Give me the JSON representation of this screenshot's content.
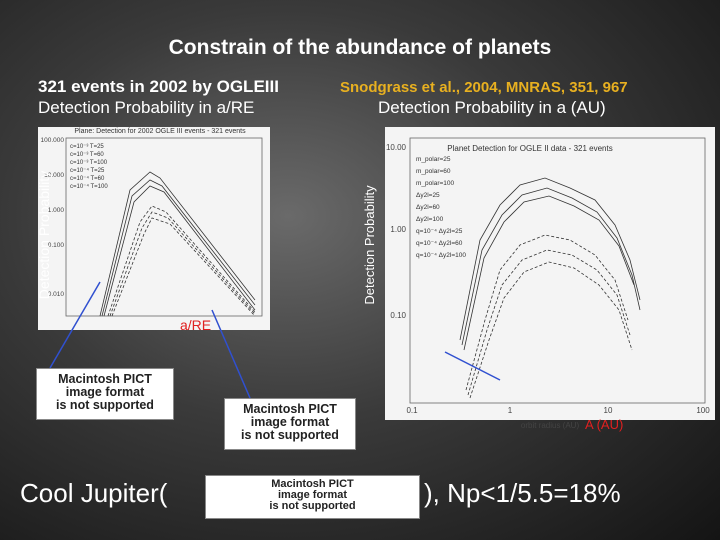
{
  "title": "Constrain of the abundance of planets",
  "left": {
    "heading": [
      "321 events in 2002 by OGLEIII",
      "Detection Probability in a/RE"
    ],
    "plot_title": "Plane: Detection for 2002 OGLE III events - 321 events",
    "legend": [
      "c=10⁻³ T=25",
      "c=10⁻³ T=60",
      "c=10⁻³ T=100",
      "c=10⁻⁴ T=25",
      "c=10⁻⁴ T=60",
      "c=10⁻⁴ T=100"
    ],
    "yticks": [
      "100.000",
      "10.000",
      "1.000",
      "0.100",
      "0.010"
    ],
    "ylabel": "Detection Probability",
    "xlabel": "a/RE"
  },
  "right": {
    "citation": "Snodgrass et al.,  2004, MNRAS, 351, 967",
    "heading": "Detection Probability in a (AU)",
    "plot_title": "Planet Detection for OGLE II data - 321 events",
    "legend": [
      "m_polar=25",
      "m_polar=60",
      "m_polar=100",
      "Δy2l=25",
      "Δy2l=60",
      "Δy2l=100",
      "q=10⁻⁴ Δy2l=25",
      "q=10⁻⁴ Δy2l=60",
      "q=10⁻⁴ Δy2l=100"
    ],
    "yticks": [
      "10.00",
      "1.00",
      "0.10"
    ],
    "xticks": [
      "0.1",
      "1",
      "10",
      "100"
    ],
    "xlabel": "orbit radius (AU)",
    "ylabel": "Detection Probability",
    "axis_note": "A  (AU)"
  },
  "pict": [
    "Macintosh PICT",
    "image format",
    "is not supported"
  ],
  "bottom": [
    "Cool Jupiter(",
    "), Np<1/5.5=18%"
  ]
}
